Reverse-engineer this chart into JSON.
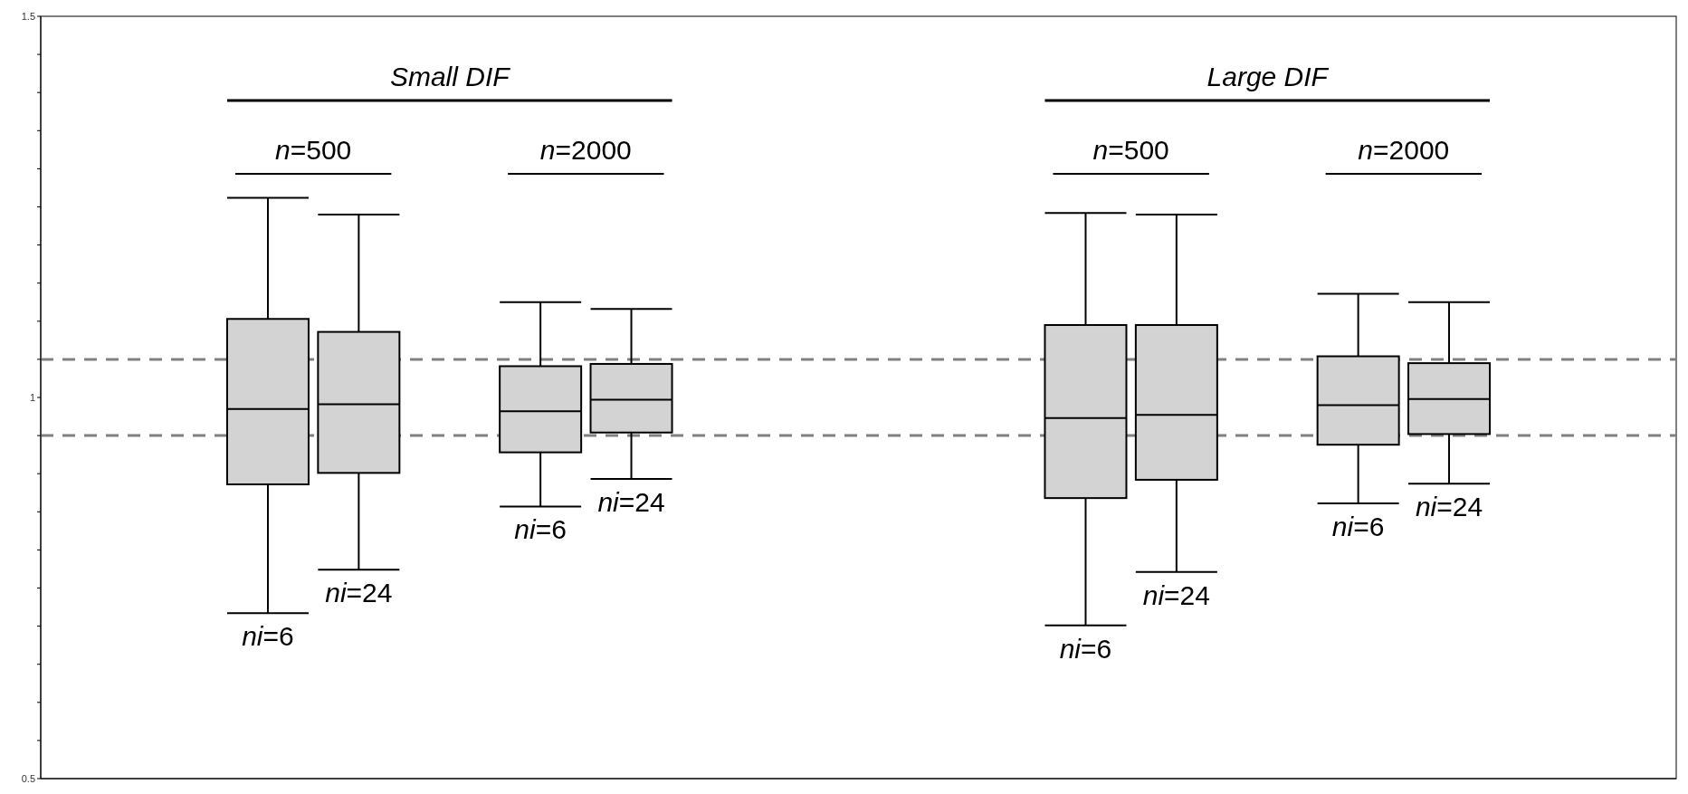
{
  "chart_data": {
    "type": "box",
    "categories": [
      null,
      null,
      null,
      null,
      null,
      null,
      null,
      null,
      null,
      null,
      null,
      null,
      null,
      null,
      null,
      null,
      null,
      null
    ],
    "color": "#d3d3d3",
    "boxes": [
      null,
      null,
      {
        "low": 0.717,
        "q1": 0.886,
        "median": 0.985,
        "q3": 1.103,
        "high": 1.262
      },
      {
        "low": 0.774,
        "q1": 0.901,
        "median": 0.991,
        "q3": 1.086,
        "high": 1.24
      },
      null,
      {
        "low": 0.857,
        "q1": 0.928,
        "median": 0.982,
        "q3": 1.041,
        "high": 1.125
      },
      {
        "low": 0.893,
        "q1": 0.954,
        "median": 0.997,
        "q3": 1.044,
        "high": 1.116
      },
      null,
      null,
      null,
      null,
      {
        "low": 0.701,
        "q1": 0.868,
        "median": 0.973,
        "q3": 1.095,
        "high": 1.242
      },
      {
        "low": 0.771,
        "q1": 0.892,
        "median": 0.977,
        "q3": 1.095,
        "high": 1.24
      },
      null,
      {
        "low": 0.861,
        "q1": 0.938,
        "median": 0.99,
        "q3": 1.054,
        "high": 1.136
      },
      {
        "low": 0.887,
        "q1": 0.952,
        "median": 0.998,
        "q3": 1.045,
        "high": 1.125
      },
      null,
      null
    ],
    "ylim": [
      0.5,
      1.5
    ],
    "yticks": [
      0.5,
      {
        "value": 0.55,
        "label": null
      },
      {
        "value": 0.6,
        "label": null
      },
      {
        "value": 0.65,
        "label": null
      },
      {
        "value": 0.7,
        "label": null
      },
      {
        "value": 0.75,
        "label": null
      },
      {
        "value": 0.8,
        "label": null
      },
      {
        "value": 0.85,
        "label": null
      },
      {
        "value": 0.9,
        "label": null
      },
      {
        "value": 0.95,
        "label": null
      },
      1,
      {
        "value": 1.05,
        "label": null
      },
      {
        "value": 1.1,
        "label": null
      },
      {
        "value": 1.15,
        "label": null
      },
      {
        "value": 1.2,
        "label": null
      },
      {
        "value": 1.25,
        "label": null
      },
      {
        "value": 1.3,
        "label": null
      },
      {
        "value": 1.35,
        "label": null
      },
      {
        "value": 1.4,
        "label": null
      },
      {
        "value": 1.45,
        "label": null
      },
      1.5
    ],
    "ref_lines": [
      {
        "axis": "y",
        "value": 1.05,
        "color": "#808080",
        "line_style": "dashed"
      },
      {
        "axis": "y",
        "value": 0.95,
        "color": "#808080",
        "line_style": "dashed"
      }
    ],
    "annotations": [
      "Small DIF",
      "n=500",
      "n=2000",
      "Large DIF",
      "n=500",
      "n=2000",
      "ni=6",
      "ni=24",
      "ni=6",
      "ni=24",
      "ni=6",
      "ni=24",
      "ni=6",
      "ni=24"
    ]
  }
}
